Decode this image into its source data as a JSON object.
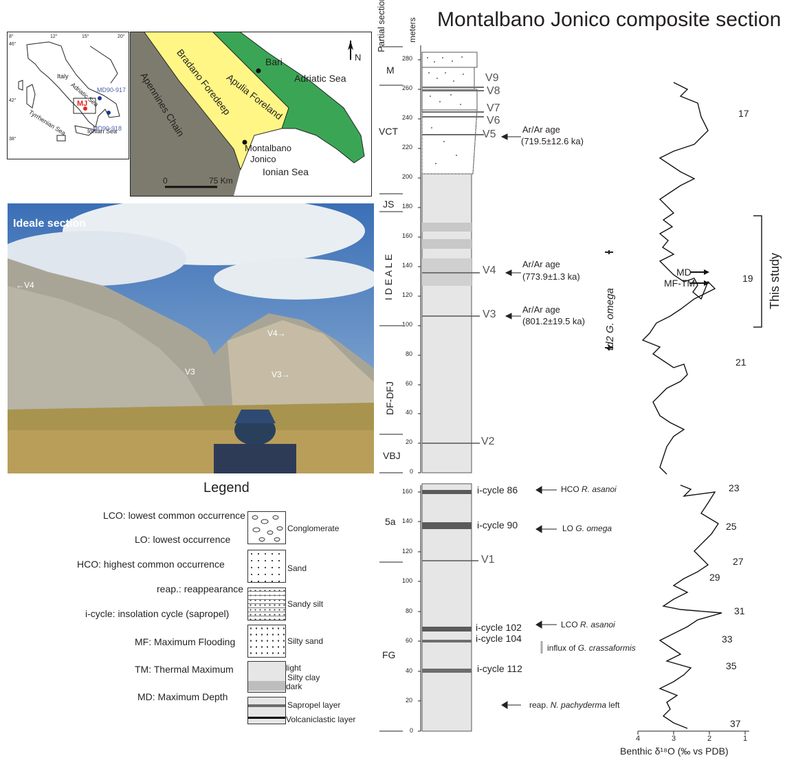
{
  "title": "Montalbano Jonico composite section",
  "column_header": {
    "partial": "Partial sections",
    "meters": "meters"
  },
  "inset_map": {
    "lon_ticks": [
      "8°",
      "12°",
      "15°",
      "20°"
    ],
    "lat_ticks": [
      "46°",
      "42°",
      "38°"
    ],
    "labels": {
      "italy": "Italy",
      "adriatic": "Adriatic Sea",
      "tyrrhenian": "Tyrrhenian Sea",
      "ionian": "Ionian Sea",
      "core1": "MD90-917",
      "core2": "MD90-918",
      "site": "MJ"
    }
  },
  "main_map": {
    "labels": {
      "bari": "Bari",
      "adriatic": "Adriatic Sea",
      "apulia": "Apulia Foreland",
      "bradano": "Bradano Foredeep",
      "apennines": "Apennines Chain",
      "montalbano": "Montalbano",
      "jonico": "Jonico",
      "ionian": "Ionian Sea",
      "north": "N"
    },
    "scale": {
      "zero": "0",
      "max": "75 Km"
    },
    "colors": {
      "apennines": "#7d7b6e",
      "bradano": "#fff685",
      "apulia": "#3aa655"
    }
  },
  "photo": {
    "title": "Ideale section",
    "labels": [
      "←V4",
      "V4→",
      "V3",
      "V3→"
    ]
  },
  "legend": {
    "title": "Legend",
    "abbreviations": [
      "LCO: lowest common occurrence",
      "LO: lowest occurrence",
      "HCO: highest common occurrence",
      "reap.: reappearance",
      "i-cycle: insolation cycle (sapropel)",
      "MF: Maximum Flooding",
      "TM: Thermal Maximum",
      "MD: Maximum Depth"
    ],
    "lithology": {
      "conglomerate": "Conglomerate",
      "sand": "Sand",
      "sandy_silt": "Sandy silt",
      "silty_sand": "Silty sand",
      "light": "light",
      "silty_clay": "Silty clay",
      "dark": "dark",
      "sapropel": "Sapropel layer",
      "volcaniclastic": "Volcaniclastic layer"
    }
  },
  "upper_section": {
    "axis_ticks": [
      "0",
      "20",
      "40",
      "60",
      "80",
      "100",
      "120",
      "140",
      "160",
      "180",
      "200",
      "220",
      "240",
      "260",
      "280"
    ],
    "partial_sections": [
      "M",
      "VCT",
      "JS",
      "I D E A L E",
      "DF-DFJ",
      "VBJ"
    ],
    "tephra": [
      "V9",
      "V8",
      "V7",
      "V6",
      "V5",
      "V4",
      "V3",
      "V2"
    ],
    "ages": [
      {
        "label": "Ar/Ar age",
        "value": "(719.5±12.6 ka)"
      },
      {
        "label": "Ar/Ar age",
        "value": "(773.9±1.3 ka)"
      },
      {
        "label": "Ar/Ar age",
        "value": "(801.2±19.5 ka)"
      }
    ],
    "biozone": "td2 G. omega",
    "mis": [
      "17",
      "19",
      "21"
    ],
    "markers": [
      "MD",
      "MF-TM"
    ],
    "study": "This study"
  },
  "lower_section": {
    "axis_ticks": [
      "0",
      "20",
      "40",
      "60",
      "80",
      "100",
      "120",
      "140",
      "160"
    ],
    "partial_sections": [
      "5a",
      "FG"
    ],
    "tephra": [
      "V1"
    ],
    "cycles": [
      "i-cycle 86",
      "i-cycle 90",
      "i-cycle 102",
      "i-cycle 104",
      "i-cycle 112"
    ],
    "events": [
      {
        "prefix": "HCO",
        "taxon": "R. asanoi",
        "suffix": ""
      },
      {
        "prefix": "LO",
        "taxon": "G. omega",
        "suffix": ""
      },
      {
        "prefix": "LCO",
        "taxon": "R. asanoi",
        "suffix": ""
      },
      {
        "prefix": "influx of",
        "taxon": "G. crassaformis",
        "suffix": ""
      },
      {
        "prefix": "reap.",
        "taxon": "N. pachyderma",
        "suffix": "left"
      }
    ],
    "mis": [
      "23",
      "25",
      "27",
      "29",
      "31",
      "33",
      "35",
      "37"
    ],
    "isotope_axis": {
      "ticks": [
        "4",
        "3",
        "2",
        "1"
      ],
      "label": "Benthic δ¹⁸O (‰ vs PDB)"
    }
  }
}
